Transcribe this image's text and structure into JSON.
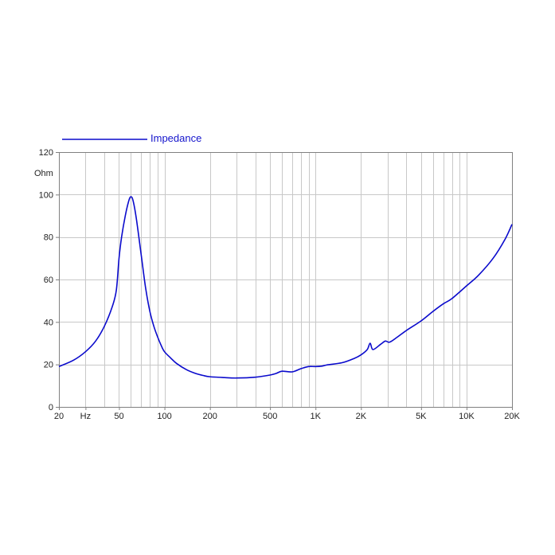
{
  "chart_data": {
    "type": "line",
    "x_scale": "log",
    "xlim": [
      20,
      20000
    ],
    "ylim": [
      0,
      120
    ],
    "ylabel": "Ohm",
    "xlabel": "",
    "title": "",
    "grid": true,
    "legend_placement": "top-left",
    "colors": {
      "series": "#0a0acc",
      "grid": "#c8c8c8",
      "axis": "#808080",
      "legend_text": "#1515cc"
    },
    "y_ticks": [
      {
        "value": 0,
        "label": "0"
      },
      {
        "value": 20,
        "label": "20"
      },
      {
        "value": 40,
        "label": "40"
      },
      {
        "value": 60,
        "label": "60"
      },
      {
        "value": 80,
        "label": "80"
      },
      {
        "value": 100,
        "label": "100"
      },
      {
        "value": 120,
        "label": "120"
      }
    ],
    "x_ticks": [
      {
        "value": 20,
        "label": "20"
      },
      {
        "value": 30,
        "label": "Hz"
      },
      {
        "value": 50,
        "label": "50"
      },
      {
        "value": 100,
        "label": "100"
      },
      {
        "value": 200,
        "label": "200"
      },
      {
        "value": 500,
        "label": "500"
      },
      {
        "value": 1000,
        "label": "1K"
      },
      {
        "value": 2000,
        "label": "2K"
      },
      {
        "value": 5000,
        "label": "5K"
      },
      {
        "value": 10000,
        "label": "10K"
      },
      {
        "value": 20000,
        "label": "20K"
      }
    ],
    "grid_x": [
      20,
      30,
      40,
      50,
      60,
      70,
      80,
      90,
      100,
      200,
      300,
      400,
      500,
      600,
      700,
      800,
      900,
      1000,
      2000,
      3000,
      4000,
      5000,
      6000,
      7000,
      8000,
      9000,
      10000,
      20000
    ],
    "series": [
      {
        "name": "Impedance",
        "x": [
          20,
          25,
          30,
          35,
          40,
          45,
          48,
          50,
          52,
          55,
          58,
          60,
          62,
          65,
          70,
          75,
          80,
          85,
          90,
          95,
          100,
          110,
          120,
          140,
          160,
          180,
          200,
          250,
          300,
          400,
          500,
          550,
          600,
          700,
          800,
          900,
          1000,
          1100,
          1200,
          1500,
          1800,
          2000,
          2200,
          2300,
          2400,
          2700,
          2900,
          3100,
          3500,
          4000,
          5000,
          6000,
          7000,
          8000,
          10000,
          12000,
          15000,
          18000,
          20000
        ],
        "y": [
          19,
          22,
          26,
          31,
          38,
          47,
          55,
          70,
          80,
          90,
          97,
          99,
          97,
          89,
          72,
          56,
          45,
          38,
          33,
          29,
          26,
          23,
          20.5,
          17.5,
          15.8,
          14.8,
          14.2,
          13.8,
          13.6,
          14,
          15,
          15.8,
          16.8,
          16.5,
          18,
          19,
          19,
          19.2,
          19.8,
          20.8,
          22.8,
          24.5,
          27,
          30,
          27,
          29.5,
          31,
          30.5,
          33,
          36,
          40.5,
          45,
          48.5,
          51,
          57,
          62,
          70,
          79,
          86
        ]
      }
    ]
  }
}
